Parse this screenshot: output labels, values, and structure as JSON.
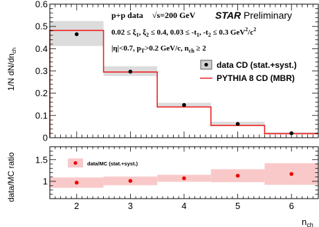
{
  "chart_data": [
    {
      "type": "line",
      "panel": "main",
      "ylabel": "1/N dN/dn",
      "ylabel_sub": "ch",
      "ylim": [
        0,
        0.6
      ],
      "xlim": [
        1.5,
        6.5
      ],
      "yticks": [
        "0",
        "0.1",
        "0.2",
        "0.3",
        "0.4",
        "0.5",
        "0.6"
      ],
      "x": [
        2,
        3,
        4,
        5,
        6
      ],
      "series": [
        {
          "name": "data CD (stat.+syst.)",
          "values": [
            0.465,
            0.297,
            0.147,
            0.062,
            0.02
          ],
          "band_lo": [
            0.412,
            0.277,
            0.137,
            0.052,
            0.015
          ],
          "band_hi": [
            0.524,
            0.321,
            0.157,
            0.072,
            0.025
          ]
        },
        {
          "name": "PYTHIA 8 CD (MBR)",
          "values": [
            0.482,
            0.295,
            0.138,
            0.055,
            0.018
          ]
        }
      ],
      "annotations": {
        "line1_a": "p+p data",
        "line1_b": "√s=200 GeV",
        "star": "STAR",
        "prelim": " Preliminary",
        "line2_a": "0.02 ≤ ξ",
        "line2_b": ", ξ",
        "line2_c": " ≤ 0.4, 0.03 ≤ -t",
        "line2_d": ", -t",
        "line2_e": " ≤ 0.3 GeV",
        "line2_f": "/c",
        "line3_a": "|η|<0.7, p",
        "line3_b": ">0.2 GeV/c, n",
        "line3_c": " ≥ 2"
      }
    },
    {
      "type": "scatter",
      "panel": "ratio",
      "ylabel": "data/MC ratio",
      "xlabel": "n",
      "xlabel_sub": "ch",
      "ylim": [
        0.6,
        1.8
      ],
      "yticks": [
        "1",
        "1.5"
      ],
      "xticks": [
        "2",
        "3",
        "4",
        "5",
        "6"
      ],
      "x": [
        2,
        3,
        4,
        5,
        6
      ],
      "series": [
        {
          "name": "data/MC (stat.+syst.)",
          "values": [
            0.97,
            1.01,
            1.07,
            1.13,
            1.17
          ],
          "band_lo": [
            0.85,
            0.91,
            0.99,
            0.98,
            0.92
          ],
          "band_hi": [
            1.09,
            1.11,
            1.15,
            1.28,
            1.42
          ]
        }
      ]
    }
  ],
  "colors": {
    "band_data": "#dcdcdc",
    "band_ratio": "#f9c9c9",
    "mc_line": "#ee2222",
    "ratio_marker": "#ee0000",
    "data_marker": "#000000"
  }
}
